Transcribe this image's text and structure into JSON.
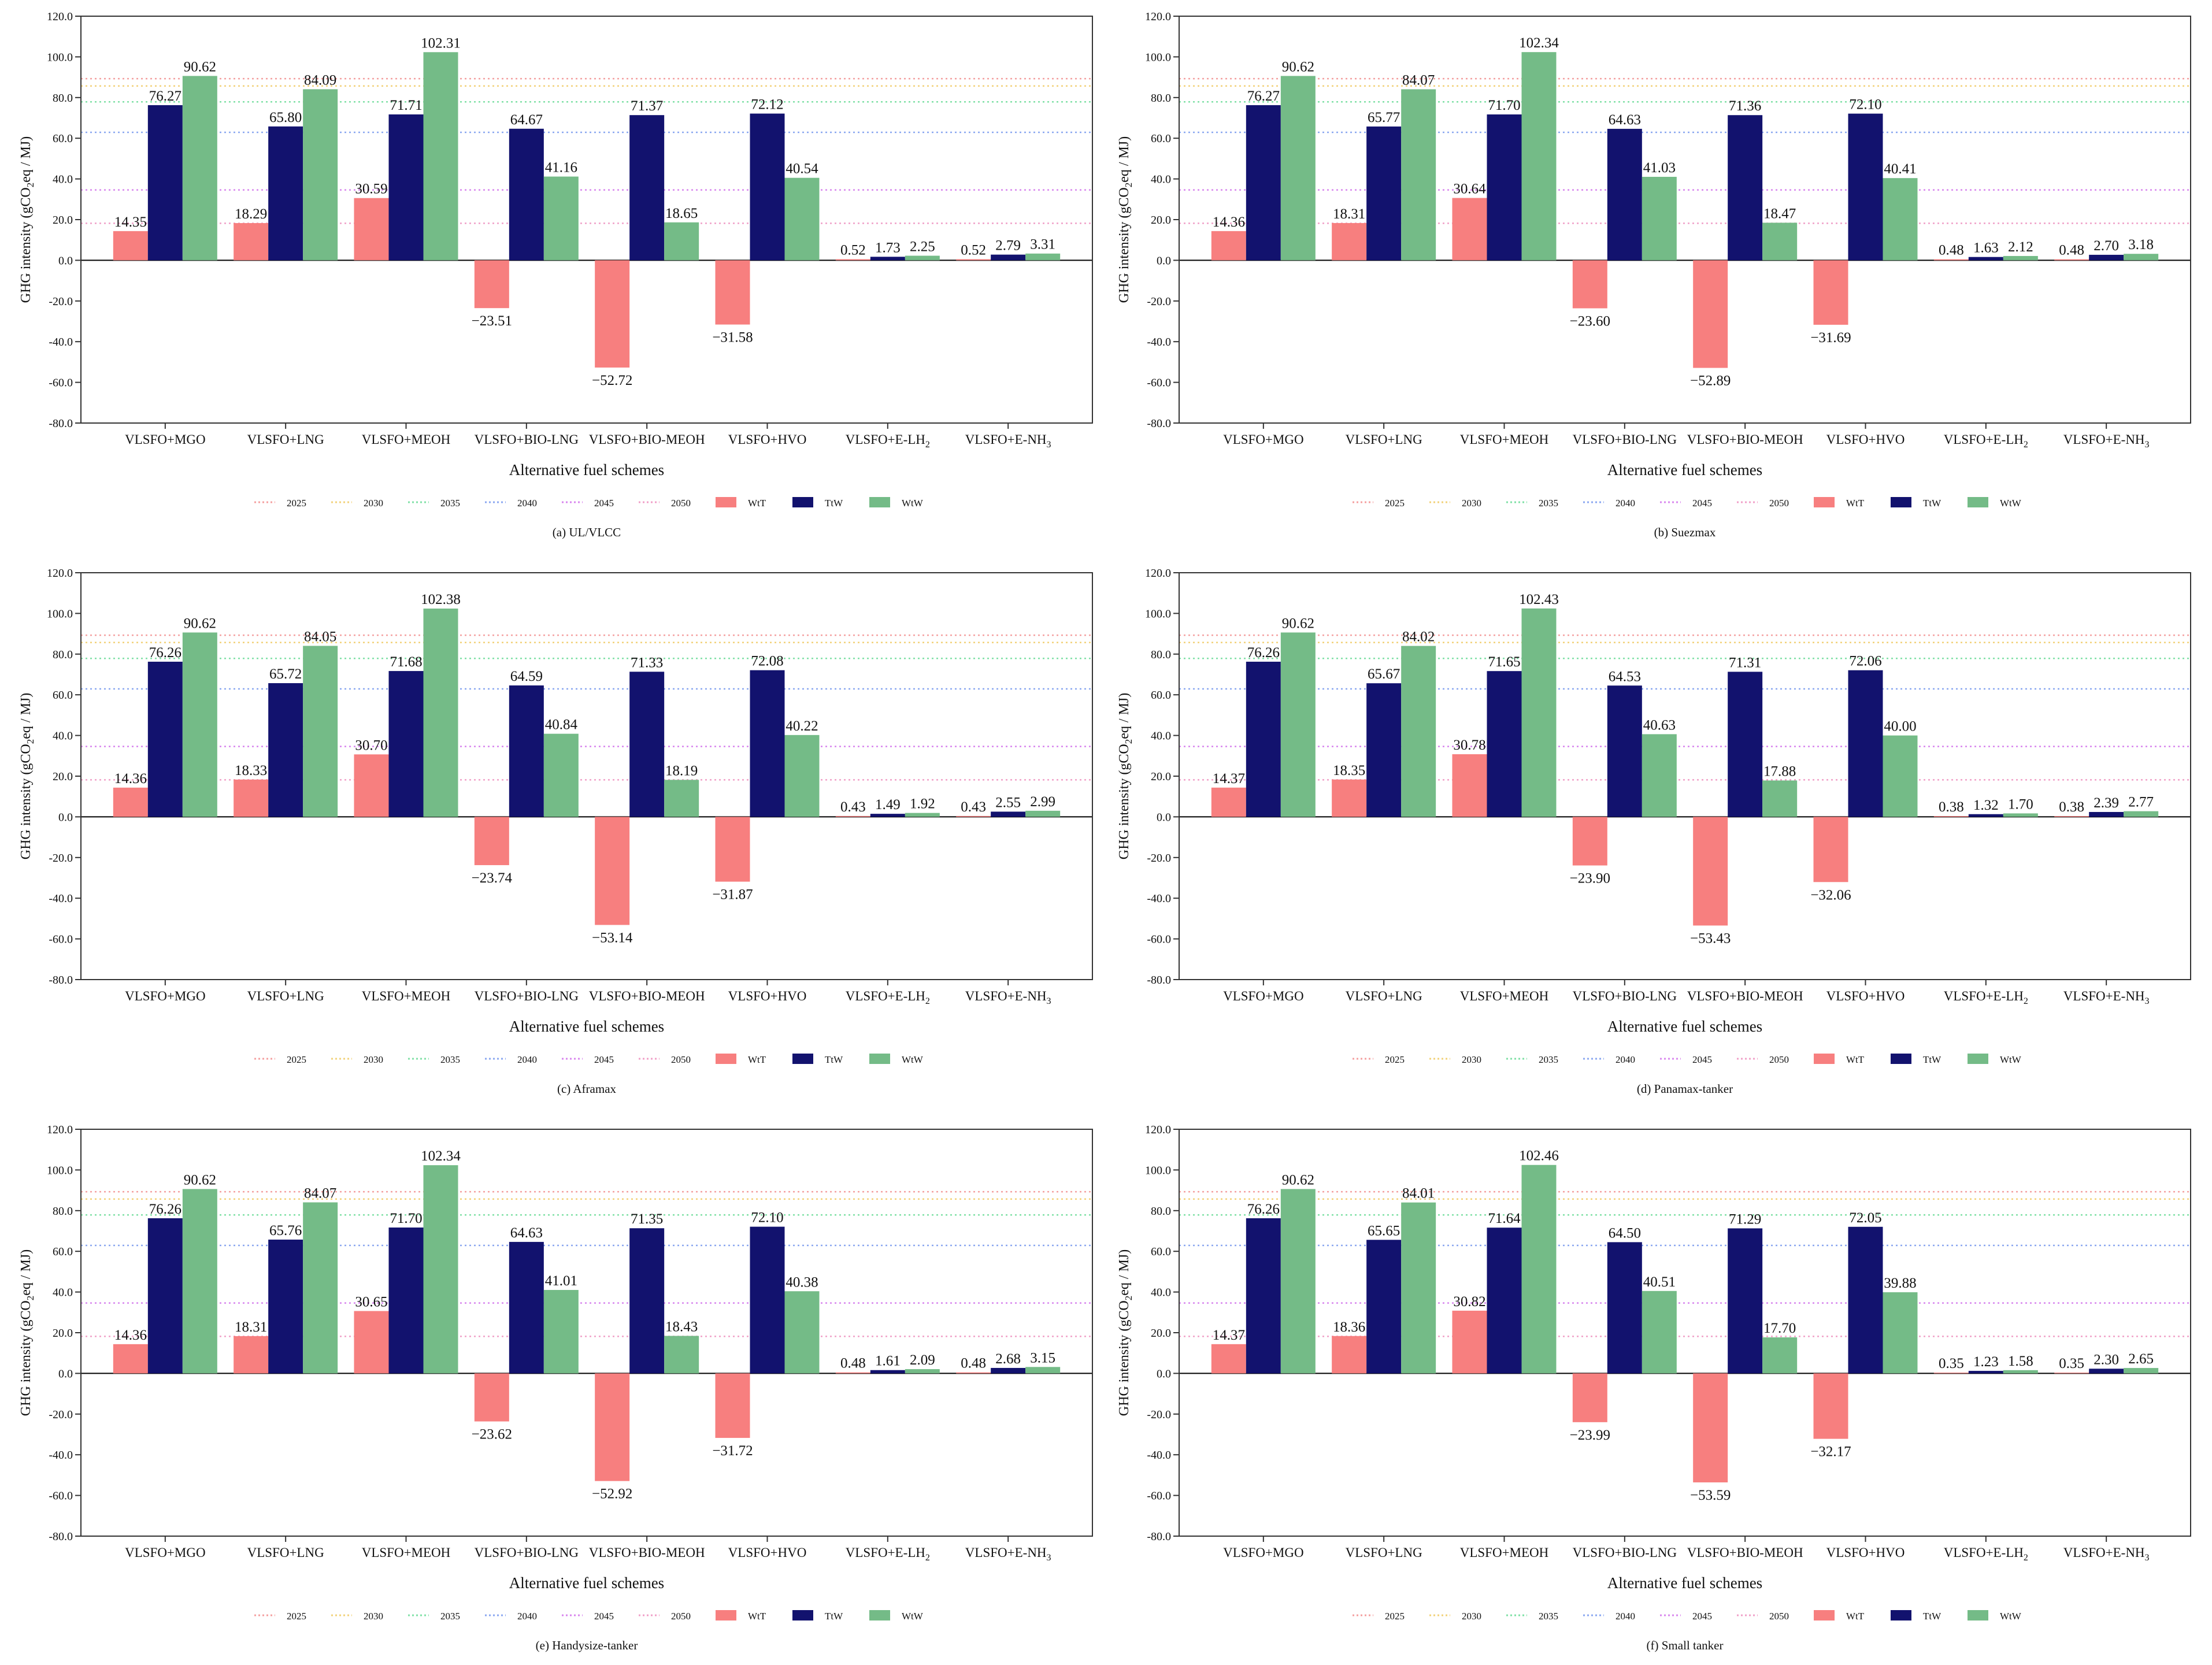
{
  "figure": {
    "scenarios": [
      "VLSFO+MGO",
      "VLSFO+LNG",
      "VLSFO+MEOH",
      "VLSFO+BIO-LNG",
      "VLSFO+BIO-MEOH",
      "VLSFO+HVO",
      "VLSFO+E-LH",
      "VLSFO+E-NH"
    ],
    "scenario_subscripts": [
      "",
      "",
      "",
      "",
      "",
      "",
      "2",
      "3"
    ],
    "xlabel": "Alternative fuel schemes",
    "ylabel_main": "GHG intensity (gCO",
    "ylabel_sub": "2",
    "ylabel_tail": "eq / MJ)",
    "yticks": [
      "120.0",
      "100.0",
      "80.0",
      "60.0",
      "40.0",
      "20.0",
      "0.0",
      "-20.0",
      "-40.0",
      "-60.0",
      "-80.0"
    ],
    "ylim": [
      -80,
      120
    ],
    "legend": [
      {
        "label": "2025",
        "kind": "line",
        "color": "#f4a0a0"
      },
      {
        "label": "2030",
        "kind": "line",
        "color": "#f2d27a"
      },
      {
        "label": "2035",
        "kind": "line",
        "color": "#7fe0a6"
      },
      {
        "label": "2040",
        "kind": "line",
        "color": "#8aa7f0"
      },
      {
        "label": "2045",
        "kind": "line",
        "color": "#d886ee"
      },
      {
        "label": "2050",
        "kind": "line",
        "color": "#f0a0c8"
      },
      {
        "label": "WtT",
        "kind": "patch",
        "color": "#f77f7f"
      },
      {
        "label": "TtW",
        "kind": "patch",
        "color": "#12126e"
      },
      {
        "label": "WtW",
        "kind": "patch",
        "color": "#74bb87"
      }
    ],
    "reference_lines": [
      {
        "year": "2025",
        "value": 89.3,
        "color": "#f4a0a0"
      },
      {
        "year": "2030",
        "value": 85.7,
        "color": "#f2d27a"
      },
      {
        "year": "2035",
        "value": 77.9,
        "color": "#7fe0a6"
      },
      {
        "year": "2040",
        "value": 62.9,
        "color": "#8aa7f0"
      },
      {
        "year": "2045",
        "value": 34.6,
        "color": "#d886ee"
      },
      {
        "year": "2050",
        "value": 18.2,
        "color": "#f0a0c8"
      }
    ]
  },
  "chart_data": [
    {
      "type": "bar",
      "title": "(a) UL/VLCC",
      "categories": [
        "VLSFO+MGO",
        "VLSFO+LNG",
        "VLSFO+MEOH",
        "VLSFO+BIO-LNG",
        "VLSFO+BIO-MEOH",
        "VLSFO+HVO",
        "VLSFO+E-LH2",
        "VLSFO+E-NH3"
      ],
      "xlabel": "Alternative fuel schemes",
      "ylabel": "GHG intensity (gCO2eq / MJ)",
      "ylim": [
        -80,
        120
      ],
      "series": [
        {
          "name": "WtT",
          "values": [
            14.35,
            18.29,
            30.59,
            -23.51,
            -52.72,
            -31.58,
            0.52,
            0.52
          ],
          "labels": [
            "14.35",
            "18.29",
            "30.59",
            "−23.51",
            "−52.72",
            "−31.58",
            "0.52",
            "0.52"
          ]
        },
        {
          "name": "TtW",
          "values": [
            76.27,
            65.8,
            71.71,
            64.67,
            71.37,
            72.12,
            1.73,
            2.79
          ],
          "labels": [
            "76.27",
            "65.80",
            "71.71",
            "64.67",
            "71.37",
            "72.12",
            "1.73",
            "2.79"
          ]
        },
        {
          "name": "WtW",
          "values": [
            90.62,
            84.09,
            102.31,
            41.16,
            18.65,
            40.54,
            2.25,
            3.31
          ],
          "labels": [
            "90.62",
            "84.09",
            "102.31",
            "41.16",
            "18.65",
            "40.54",
            "2.25",
            "3.31"
          ]
        }
      ]
    },
    {
      "type": "bar",
      "title": "(b) Suezmax",
      "categories": [
        "VLSFO+MGO",
        "VLSFO+LNG",
        "VLSFO+MEOH",
        "VLSFO+BIO-LNG",
        "VLSFO+BIO-MEOH",
        "VLSFO+HVO",
        "VLSFO+E-LH2",
        "VLSFO+E-NH3"
      ],
      "xlabel": "Alternative fuel schemes",
      "ylabel": "GHG intensity (gCO2eq / MJ)",
      "ylim": [
        -80,
        120
      ],
      "series": [
        {
          "name": "WtT",
          "values": [
            14.36,
            18.31,
            30.64,
            -23.6,
            -52.89,
            -31.69,
            0.48,
            0.48
          ],
          "labels": [
            "14.36",
            "18.31",
            "30.64",
            "−23.60",
            "−52.89",
            "−31.69",
            "0.48",
            "0.48"
          ]
        },
        {
          "name": "TtW",
          "values": [
            76.27,
            65.77,
            71.7,
            64.63,
            71.36,
            72.1,
            1.63,
            2.7
          ],
          "labels": [
            "76.27",
            "65.77",
            "71.70",
            "64.63",
            "71.36",
            "72.10",
            "1.63",
            "2.70"
          ]
        },
        {
          "name": "WtW",
          "values": [
            90.62,
            84.07,
            102.34,
            41.03,
            18.47,
            40.41,
            2.12,
            3.18
          ],
          "labels": [
            "90.62",
            "84.07",
            "102.34",
            "41.03",
            "18.47",
            "40.41",
            "2.12",
            "3.18"
          ]
        }
      ]
    },
    {
      "type": "bar",
      "title": "(c) Aframax",
      "categories": [
        "VLSFO+MGO",
        "VLSFO+LNG",
        "VLSFO+MEOH",
        "VLSFO+BIO-LNG",
        "VLSFO+BIO-MEOH",
        "VLSFO+HVO",
        "VLSFO+E-LH2",
        "VLSFO+E-NH3"
      ],
      "xlabel": "Alternative fuel schemes",
      "ylabel": "GHG intensity (gCO2eq / MJ)",
      "ylim": [
        -80,
        120
      ],
      "series": [
        {
          "name": "WtT",
          "values": [
            14.36,
            18.33,
            30.7,
            -23.74,
            -53.14,
            -31.87,
            0.43,
            0.43
          ],
          "labels": [
            "14.36",
            "18.33",
            "30.70",
            "−23.74",
            "−53.14",
            "−31.87",
            "0.43",
            "0.43"
          ]
        },
        {
          "name": "TtW",
          "values": [
            76.26,
            65.72,
            71.68,
            64.59,
            71.33,
            72.08,
            1.49,
            2.55
          ],
          "labels": [
            "76.26",
            "65.72",
            "71.68",
            "64.59",
            "71.33",
            "72.08",
            "1.49",
            "2.55"
          ]
        },
        {
          "name": "WtW",
          "values": [
            90.62,
            84.05,
            102.38,
            40.84,
            18.19,
            40.22,
            1.92,
            2.99
          ],
          "labels": [
            "90.62",
            "84.05",
            "102.38",
            "40.84",
            "18.19",
            "40.22",
            "1.92",
            "2.99"
          ]
        }
      ]
    },
    {
      "type": "bar",
      "title": "(d) Panamax-tanker",
      "categories": [
        "VLSFO+MGO",
        "VLSFO+LNG",
        "VLSFO+MEOH",
        "VLSFO+BIO-LNG",
        "VLSFO+BIO-MEOH",
        "VLSFO+HVO",
        "VLSFO+E-LH2",
        "VLSFO+E-NH3"
      ],
      "xlabel": "Alternative fuel schemes",
      "ylabel": "GHG intensity (gCO2eq / MJ)",
      "ylim": [
        -80,
        120
      ],
      "series": [
        {
          "name": "WtT",
          "values": [
            14.37,
            18.35,
            30.78,
            -23.9,
            -53.43,
            -32.06,
            0.38,
            0.38
          ],
          "labels": [
            "14.37",
            "18.35",
            "30.78",
            "−23.90",
            "−53.43",
            "−32.06",
            "0.38",
            "0.38"
          ]
        },
        {
          "name": "TtW",
          "values": [
            76.26,
            65.67,
            71.65,
            64.53,
            71.31,
            72.06,
            1.32,
            2.39
          ],
          "labels": [
            "76.26",
            "65.67",
            "71.65",
            "64.53",
            "71.31",
            "72.06",
            "1.32",
            "2.39"
          ]
        },
        {
          "name": "WtW",
          "values": [
            90.62,
            84.02,
            102.43,
            40.63,
            17.88,
            40.0,
            1.7,
            2.77
          ],
          "labels": [
            "90.62",
            "84.02",
            "102.43",
            "40.63",
            "17.88",
            "40.00",
            "1.70",
            "2.77"
          ]
        }
      ]
    },
    {
      "type": "bar",
      "title": "(e) Handysize-tanker",
      "categories": [
        "VLSFO+MGO",
        "VLSFO+LNG",
        "VLSFO+MEOH",
        "VLSFO+BIO-LNG",
        "VLSFO+BIO-MEOH",
        "VLSFO+HVO",
        "VLSFO+E-LH2",
        "VLSFO+E-NH3"
      ],
      "xlabel": "Alternative fuel schemes",
      "ylabel": "GHG intensity (gCO2eq / MJ)",
      "ylim": [
        -80,
        120
      ],
      "series": [
        {
          "name": "WtT",
          "values": [
            14.36,
            18.31,
            30.65,
            -23.62,
            -52.92,
            -31.72,
            0.48,
            0.48
          ],
          "labels": [
            "14.36",
            "18.31",
            "30.65",
            "−23.62",
            "−52.92",
            "−31.72",
            "0.48",
            "0.48"
          ]
        },
        {
          "name": "TtW",
          "values": [
            76.26,
            65.76,
            71.7,
            64.63,
            71.35,
            72.1,
            1.61,
            2.68
          ],
          "labels": [
            "76.26",
            "65.76",
            "71.70",
            "64.63",
            "71.35",
            "72.10",
            "1.61",
            "2.68"
          ]
        },
        {
          "name": "WtW",
          "values": [
            90.62,
            84.07,
            102.34,
            41.01,
            18.43,
            40.38,
            2.09,
            3.15
          ],
          "labels": [
            "90.62",
            "84.07",
            "102.34",
            "41.01",
            "18.43",
            "40.38",
            "2.09",
            "3.15"
          ]
        }
      ]
    },
    {
      "type": "bar",
      "title": "(f) Small tanker",
      "categories": [
        "VLSFO+MGO",
        "VLSFO+LNG",
        "VLSFO+MEOH",
        "VLSFO+BIO-LNG",
        "VLSFO+BIO-MEOH",
        "VLSFO+HVO",
        "VLSFO+E-LH2",
        "VLSFO+E-NH3"
      ],
      "xlabel": "Alternative fuel schemes",
      "ylabel": "GHG intensity (gCO2eq / MJ)",
      "ylim": [
        -80,
        120
      ],
      "series": [
        {
          "name": "WtT",
          "values": [
            14.37,
            18.36,
            30.82,
            -23.99,
            -53.59,
            -32.17,
            0.35,
            0.35
          ],
          "labels": [
            "14.37",
            "18.36",
            "30.82",
            "−23.99",
            "−53.59",
            "−32.17",
            "0.35",
            "0.35"
          ]
        },
        {
          "name": "TtW",
          "values": [
            76.26,
            65.65,
            71.64,
            64.5,
            71.29,
            72.05,
            1.23,
            2.3
          ],
          "labels": [
            "76.26",
            "65.65",
            "71.64",
            "64.50",
            "71.29",
            "72.05",
            "1.23",
            "2.30"
          ]
        },
        {
          "name": "WtW",
          "values": [
            90.62,
            84.01,
            102.46,
            40.51,
            17.7,
            39.88,
            1.58,
            2.65
          ],
          "labels": [
            "90.62",
            "84.01",
            "102.46",
            "40.51",
            "17.70",
            "39.88",
            "1.58",
            "2.65"
          ]
        }
      ]
    }
  ]
}
